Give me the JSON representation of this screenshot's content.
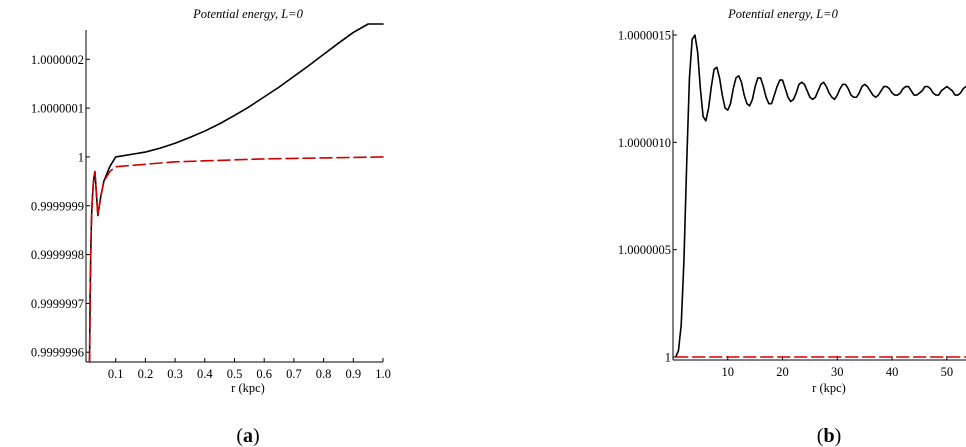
{
  "chart_data": [
    {
      "type": "line",
      "panel": "a",
      "caption_letter": "a",
      "title": "Potential energy, L=0",
      "xlabel": "r (kpc)",
      "ylabel": "",
      "xlim": [
        0.0,
        1.0
      ],
      "ylim": [
        0.99999958,
        1.00000026
      ],
      "x_tick_labels": [
        "0.1",
        "0.2",
        "0.3",
        "0.4",
        "0.5",
        "0.6",
        "0.7",
        "0.8",
        "0.9",
        "1.0"
      ],
      "x_tick_values": [
        0.1,
        0.2,
        0.3,
        0.4,
        0.5,
        0.6,
        0.7,
        0.8,
        0.9,
        1.0
      ],
      "y_tick_labels": [
        "0.9999996",
        "0.9999997",
        "0.9999998",
        "0.9999999",
        "1",
        "1.0000001",
        "1.0000002"
      ],
      "y_tick_values": [
        0.9999996,
        0.9999997,
        0.9999998,
        0.9999999,
        1.0,
        1.0000001,
        1.0000002
      ],
      "series": [
        {
          "color": "#000000",
          "dash": "solid",
          "x": [
            0.012,
            0.014,
            0.016,
            0.018,
            0.02,
            0.025,
            0.03,
            0.04,
            0.05,
            0.06,
            0.08,
            0.1,
            0.15,
            0.2,
            0.25,
            0.3,
            0.35,
            0.4,
            0.45,
            0.5,
            0.55,
            0.6,
            0.65,
            0.7,
            0.75,
            0.8,
            0.85,
            0.9,
            0.95,
            1.0
          ],
          "y": [
            0.99999958,
            0.99999972,
            0.9999998,
            0.99999986,
            0.9999999,
            0.99999995,
            0.99999997,
            0.99999988,
            0.99999992,
            0.99999995,
            0.99999998,
            1.0,
            1.000000005,
            1.00000001,
            1.000000018,
            1.000000028,
            1.00000004,
            1.000000053,
            1.000000068,
            1.000000085,
            1.000000103,
            1.000000123,
            1.000000143,
            1.000000165,
            1.000000187,
            1.00000021,
            1.000000233,
            1.000000255,
            1.000000278,
            1.0000003
          ]
        },
        {
          "color": "#d00000",
          "dash": "dashed",
          "x": [
            0.012,
            0.014,
            0.016,
            0.018,
            0.02,
            0.025,
            0.03,
            0.04,
            0.05,
            0.06,
            0.08,
            0.1,
            0.2,
            0.3,
            0.4,
            0.5,
            0.6,
            0.7,
            0.8,
            0.9,
            1.0
          ],
          "y": [
            0.99999958,
            0.99999972,
            0.9999998,
            0.99999986,
            0.9999999,
            0.99999995,
            0.99999997,
            0.99999988,
            0.99999992,
            0.99999995,
            0.99999997,
            0.99999998,
            0.999999985,
            0.99999999,
            0.999999992,
            0.999999994,
            0.999999996,
            0.999999997,
            0.999999998,
            0.999999999,
            1.0
          ]
        }
      ]
    },
    {
      "type": "line",
      "panel": "b",
      "caption_letter": "b",
      "title": "Potential energy, L=0",
      "xlabel": "r (kpc)",
      "ylabel": "",
      "xlim": [
        0.0,
        53.5
      ],
      "ylim": [
        1.0,
        1.0000015
      ],
      "x_tick_labels": [
        "10",
        "20",
        "30",
        "40",
        "50"
      ],
      "x_tick_values": [
        10,
        20,
        30,
        40,
        50
      ],
      "y_tick_labels": [
        "1",
        "1.0000005",
        "1.0000010",
        "1.0000015"
      ],
      "y_tick_values": [
        1.0,
        1.0000005,
        1.000001,
        1.0000015
      ],
      "series": [
        {
          "color": "#000000",
          "dash": "solid",
          "x": [
            0.5,
            1.0,
            1.5,
            2.0,
            2.5,
            3.0,
            3.5,
            4.0,
            4.5,
            5.0,
            5.5,
            6.0,
            6.5,
            7.0,
            7.5,
            8.0,
            8.5,
            9.0,
            9.5,
            10.0,
            10.5,
            11.0,
            11.5,
            12.0,
            12.5,
            13.0,
            13.5,
            14.0,
            14.5,
            15.0,
            15.5,
            16.0,
            16.5,
            17.0,
            17.5,
            18.0,
            18.5,
            19.0,
            19.5,
            20.0,
            20.5,
            21.0,
            21.5,
            22.0,
            22.5,
            23.0,
            23.5,
            24.0,
            24.5,
            25.0,
            25.5,
            26.0,
            26.5,
            27.0,
            27.5,
            28.0,
            28.5,
            29.0,
            29.5,
            30.0,
            30.5,
            31.0,
            31.5,
            32.0,
            32.5,
            33.0,
            33.5,
            34.0,
            34.5,
            35.0,
            35.5,
            36.0,
            36.5,
            37.0,
            37.5,
            38.0,
            38.5,
            39.0,
            39.5,
            40.0,
            40.5,
            41.0,
            41.5,
            42.0,
            42.5,
            43.0,
            43.5,
            44.0,
            44.5,
            45.0,
            45.5,
            46.0,
            46.5,
            47.0,
            47.5,
            48.0,
            48.5,
            49.0,
            49.5,
            50.0,
            50.5,
            51.0,
            51.5,
            52.0,
            52.5,
            53.0,
            53.5
          ],
          "y": [
            1.0,
            1.00000003,
            1.00000015,
            1.00000045,
            1.0000009,
            1.0000013,
            1.00000148,
            1.0000015,
            1.00000142,
            1.00000125,
            1.00000112,
            1.0000011,
            1.00000116,
            1.00000126,
            1.00000134,
            1.00000135,
            1.0000013,
            1.00000122,
            1.00000116,
            1.00000115,
            1.00000118,
            1.00000125,
            1.0000013,
            1.00000131,
            1.00000128,
            1.00000122,
            1.00000118,
            1.00000117,
            1.0000012,
            1.00000126,
            1.0000013,
            1.0000013,
            1.00000126,
            1.00000121,
            1.00000118,
            1.00000118,
            1.00000122,
            1.00000126,
            1.00000129,
            1.00000129,
            1.00000125,
            1.00000121,
            1.00000119,
            1.0000012,
            1.00000123,
            1.00000127,
            1.00000128,
            1.00000127,
            1.00000124,
            1.00000121,
            1.0000012,
            1.00000121,
            1.00000124,
            1.00000127,
            1.00000128,
            1.00000126,
            1.00000123,
            1.00000121,
            1.0000012,
            1.00000122,
            1.00000125,
            1.00000127,
            1.00000127,
            1.00000125,
            1.00000122,
            1.00000121,
            1.00000121,
            1.00000123,
            1.00000126,
            1.00000127,
            1.00000126,
            1.00000124,
            1.00000122,
            1.00000121,
            1.00000122,
            1.00000124,
            1.00000126,
            1.00000126,
            1.00000125,
            1.00000123,
            1.00000122,
            1.00000122,
            1.00000123,
            1.00000125,
            1.00000126,
            1.00000126,
            1.00000124,
            1.00000122,
            1.00000122,
            1.00000123,
            1.00000124,
            1.00000126,
            1.00000126,
            1.00000125,
            1.00000123,
            1.00000122,
            1.00000122,
            1.00000124,
            1.00000125,
            1.00000126,
            1.00000125,
            1.00000124,
            1.00000122,
            1.00000122,
            1.00000123,
            1.00000125,
            1.00000126
          ]
        },
        {
          "color": "#d00000",
          "dash": "dashed",
          "x": [
            0.5,
            10,
            20,
            30,
            40,
            50,
            53.5
          ],
          "y": [
            1.0,
            1.0,
            1.0,
            1.0,
            1.0,
            1.0,
            1.0
          ]
        }
      ]
    }
  ]
}
